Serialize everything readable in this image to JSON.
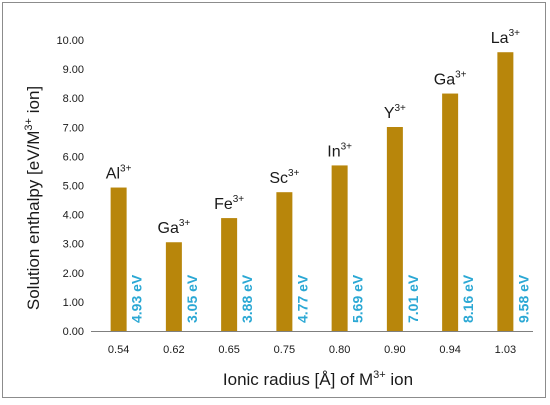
{
  "chart_data": {
    "type": "bar",
    "categories": [
      "0.54",
      "0.62",
      "0.65",
      "0.75",
      "0.80",
      "0.90",
      "0.94",
      "1.03"
    ],
    "ion_labels": [
      {
        "element": "Al",
        "charge": "3+"
      },
      {
        "element": "Ga",
        "charge": "3+"
      },
      {
        "element": "Fe",
        "charge": "3+"
      },
      {
        "element": "Sc",
        "charge": "3+"
      },
      {
        "element": "In",
        "charge": "3+"
      },
      {
        "element": "Y",
        "charge": "3+"
      },
      {
        "element": "Ga",
        "charge": "3+"
      },
      {
        "element": "La",
        "charge": "3+"
      }
    ],
    "values": [
      4.93,
      3.05,
      3.88,
      4.77,
      5.69,
      7.01,
      8.16,
      9.58
    ],
    "data_labels": [
      "4.93 eV",
      "3.05 eV",
      "3.88 eV",
      "4.77 eV",
      "5.69 eV",
      "7.01 eV",
      "8.16 eV",
      "9.58 eV"
    ],
    "xlabel": {
      "main": "Ionic radius [Å] of M",
      "sup": "3+",
      "tail": " ion"
    },
    "ylabel": {
      "main": "Solution enthalpy [eV/M",
      "sup": "3+",
      "tail": " ion]"
    },
    "ylim": [
      0,
      10
    ],
    "ytick_step": 1,
    "ytick_labels": [
      "0.00",
      "1.00",
      "2.00",
      "3.00",
      "4.00",
      "5.00",
      "6.00",
      "7.00",
      "8.00",
      "9.00",
      "10.00"
    ],
    "grid": false,
    "legend": "none",
    "colors": {
      "bar": "#b8860b",
      "data_label": "#2ba8d4",
      "text": "#1a1a1a",
      "axis": "#7f7f7f"
    }
  }
}
